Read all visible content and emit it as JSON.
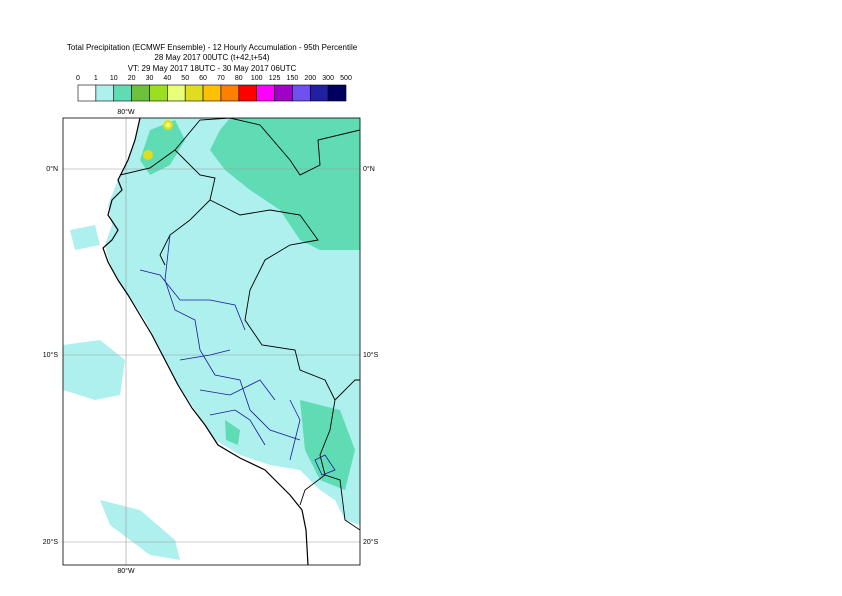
{
  "header": {
    "title_lines": [
      "Total Precipitation (ECMWF Ensemble) - 12 Hourly Accumulation - 95th Percentile",
      "28 May 2017 00UTC (t+42,t+54)",
      "VT: 29 May 2017 18UTC - 30 May 2017 06UTC"
    ]
  },
  "legend": {
    "labels": [
      0,
      1,
      10,
      20,
      30,
      40,
      50,
      60,
      70,
      80,
      100,
      125,
      150,
      200,
      300,
      500
    ],
    "colors": [
      "#ffffff",
      "#aef0ee",
      "#5fdcb4",
      "#6cc23a",
      "#9be01e",
      "#eaff78",
      "#dede1e",
      "#ffc000",
      "#ff8000",
      "#ff0000",
      "#ff00ff",
      "#a000c8",
      "#7050f0",
      "#2020a0",
      "#000060"
    ]
  },
  "map": {
    "lon_labels": [
      "80°W"
    ],
    "lat_labels": [
      "0°N",
      "10°S",
      "20°S"
    ]
  }
}
